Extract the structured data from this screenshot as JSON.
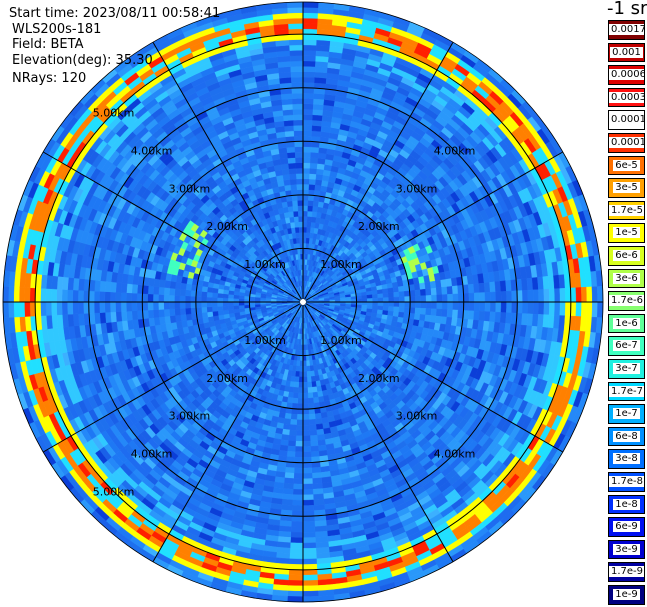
{
  "header": {
    "start_time": "Start time: 2023/08/11 00:58:41",
    "instrument": "WLS200s-181",
    "field": "Field: BETA",
    "elevation": "Elevation(deg): 35.30",
    "nrays": "NRays: 120"
  },
  "colorbar": {
    "unit": "-1 sr",
    "entries": [
      {
        "label": "0.0017",
        "color": "#800000"
      },
      {
        "label": "0.001",
        "color": "#c00000"
      },
      {
        "label": "0.0006",
        "color": "#e00000"
      },
      {
        "label": "0.0003",
        "color": "#ff1010"
      },
      {
        "label": "0.00017",
        "color": "#ffffff"
      },
      {
        "label": "0.0001",
        "color": "#ff3000"
      },
      {
        "label": "6e-5",
        "color": "#ff7000"
      },
      {
        "label": "3e-5",
        "color": "#ffa000"
      },
      {
        "label": "1.7e-5",
        "color": "#ffd000"
      },
      {
        "label": "1e-5",
        "color": "#ffff00"
      },
      {
        "label": "6e-6",
        "color": "#d8ff20"
      },
      {
        "label": "3e-6",
        "color": "#b0ff48"
      },
      {
        "label": "1.7e-6",
        "color": "#88ff70"
      },
      {
        "label": "1e-6",
        "color": "#60ff98"
      },
      {
        "label": "6e-7",
        "color": "#40ffc0"
      },
      {
        "label": "3e-7",
        "color": "#20f0e0"
      },
      {
        "label": "1.7e-7",
        "color": "#00d8ff"
      },
      {
        "label": "1e-7",
        "color": "#00b0ff"
      },
      {
        "label": "6e-8",
        "color": "#0090ff"
      },
      {
        "label": "3e-8",
        "color": "#0070ff"
      },
      {
        "label": "1.7e-8",
        "color": "#0050ff"
      },
      {
        "label": "1e-8",
        "color": "#0030ff"
      },
      {
        "label": "6e-9",
        "color": "#0010f0"
      },
      {
        "label": "3e-9",
        "color": "#0000d0"
      },
      {
        "label": "1.7e-9",
        "color": "#0000a0"
      },
      {
        "label": "1e-9",
        "color": "#000080"
      }
    ]
  },
  "chart_data": {
    "type": "heatmap",
    "projection": "polar (PPI)",
    "range_rings_km": [
      1,
      2,
      3,
      4,
      5
    ],
    "ring_labels": [
      "1.00km",
      "2.00km",
      "3.00km",
      "4.00km",
      "5.00km"
    ],
    "spokes": 12,
    "max_range_km": 5.6,
    "nrays": 120,
    "background_color": "#1e6cf0",
    "features": [
      {
        "description": "Enhanced backscatter ring",
        "range_km": [
          4.9,
          5.4
        ],
        "colors": [
          "#20e0ff",
          "#ffff00",
          "#ff8000",
          "#ff2000"
        ]
      },
      {
        "description": "Enhanced backscatter arc",
        "range_km": [
          2.0,
          2.6
        ],
        "colors": [
          "#40ffc0",
          "#b0ff48"
        ]
      }
    ]
  }
}
